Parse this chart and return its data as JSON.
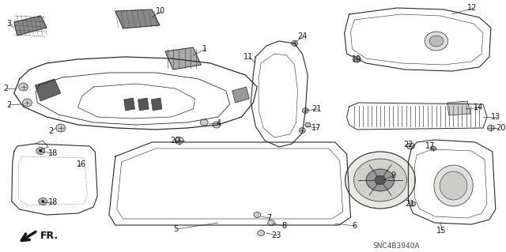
{
  "background_color": "#f5f5f0",
  "diagram_code": "SNC4B3940A",
  "line_color": "#2a2a2a",
  "text_color": "#1a1a1a",
  "label_fontsize": 7.0,
  "fig_width": 6.4,
  "fig_height": 3.19,
  "dpi": 100
}
